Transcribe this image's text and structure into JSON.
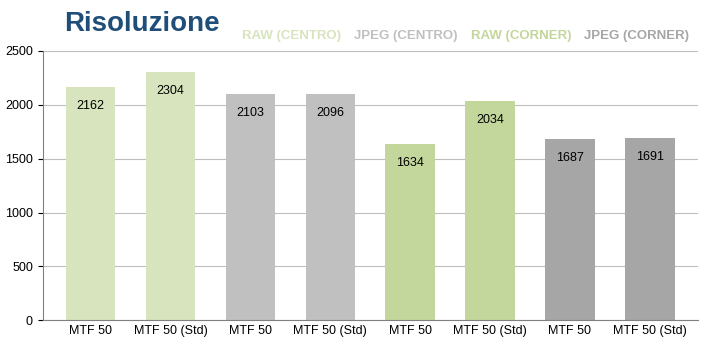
{
  "chart_data": {
    "type": "bar",
    "title": "Risoluzione",
    "categories": [
      "MTF 50",
      "MTF 50 (Std)",
      "MTF 50",
      "MTF 50 (Std)",
      "MTF 50",
      "MTF 50 (Std)",
      "MTF 50",
      "MTF 50 (Std)"
    ],
    "series": [
      {
        "name": "RAW (CENTRO)",
        "color": "#d7e4bd",
        "values": [
          2162,
          2304,
          null,
          null,
          null,
          null,
          null,
          null
        ]
      },
      {
        "name": "JPEG (CENTRO)",
        "color": "#c0c0c0",
        "values": [
          null,
          null,
          2103,
          2096,
          null,
          null,
          null,
          null
        ]
      },
      {
        "name": "RAW (CORNER)",
        "color": "#c3d69b",
        "values": [
          null,
          null,
          null,
          null,
          1634,
          2034,
          null,
          null
        ]
      },
      {
        "name": "JPEG (CORNER)",
        "color": "#a6a6a6",
        "values": [
          null,
          null,
          null,
          null,
          null,
          null,
          1687,
          1691
        ]
      }
    ],
    "ylim": [
      0,
      2500
    ],
    "yticks": [
      0,
      500,
      1000,
      1500,
      2000,
      2500
    ],
    "grid": true,
    "legend": "upper right",
    "data_labels": true
  }
}
